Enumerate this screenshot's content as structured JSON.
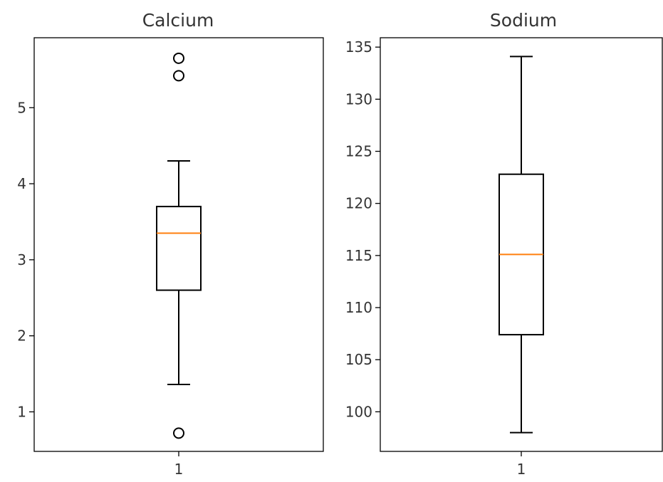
{
  "chart_data": [
    {
      "type": "box",
      "title": "Calcium",
      "xlabel": "",
      "ylabel": "",
      "ylim": [
        0.48,
        5.92
      ],
      "yticks": [
        1,
        2,
        3,
        4,
        5
      ],
      "categories": [
        "1"
      ],
      "boxes": [
        {
          "whisker_low": 1.36,
          "q1": 2.6,
          "median": 3.35,
          "q3": 3.7,
          "whisker_high": 4.3,
          "fliers": [
            5.65,
            5.42,
            0.72
          ]
        }
      ],
      "grid": false
    },
    {
      "type": "box",
      "title": "Sodium",
      "xlabel": "",
      "ylabel": "",
      "ylim": [
        96.2,
        135.9
      ],
      "yticks": [
        100,
        105,
        110,
        115,
        120,
        125,
        130,
        135
      ],
      "categories": [
        "1"
      ],
      "boxes": [
        {
          "whisker_low": 98.0,
          "q1": 107.4,
          "median": 115.1,
          "q3": 122.8,
          "whisker_high": 134.1,
          "fliers": []
        }
      ],
      "grid": false
    }
  ],
  "colors": {
    "median": "#ff7f0e",
    "box": "#000000",
    "text": "#333333"
  }
}
